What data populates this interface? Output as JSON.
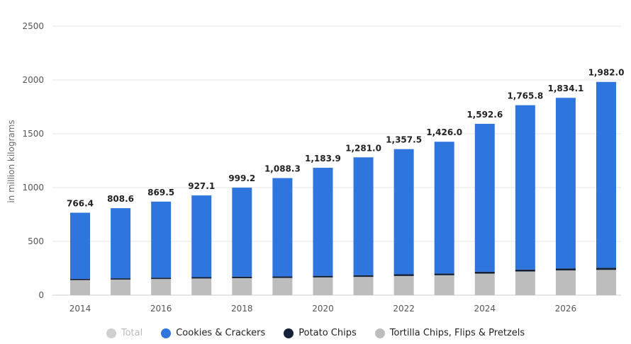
{
  "chart_data": {
    "type": "bar",
    "stacked": true,
    "ylabel": "in million kilograms",
    "ylim": [
      0,
      2500
    ],
    "yticks": [
      0,
      500,
      1000,
      1500,
      2000,
      2500
    ],
    "grid": true,
    "legend_placement": "bottom",
    "categories": [
      "2014",
      "2015",
      "2016",
      "2017",
      "2018",
      "2019",
      "2020",
      "2021",
      "2022",
      "2023",
      "2024",
      "2025",
      "2026",
      "2027"
    ],
    "xtick_labels": [
      "2014",
      "",
      "2016",
      "",
      "2018",
      "",
      "2020",
      "",
      "2022",
      "",
      "2024",
      "",
      "2026",
      ""
    ],
    "total_labels": [
      "766.4",
      "808.6",
      "869.5",
      "927.1",
      "999.2",
      "1,088.3",
      "1,183.9",
      "1,281.0",
      "1,357.5",
      "1,426.0",
      "1,592.6",
      "1,765.8",
      "1,834.1",
      "1,982.0"
    ],
    "series": [
      {
        "name": "Tortilla Chips, Flips & Pretzels",
        "color": "#bdbdbd",
        "values": [
          140,
          145,
          150,
          155,
          158,
          160,
          165,
          170,
          178,
          185,
          200,
          220,
          230,
          235
        ]
      },
      {
        "name": "Potato Chips",
        "color": "#152238",
        "values": [
          12,
          12,
          13,
          13,
          14,
          14,
          15,
          15,
          16,
          17,
          18,
          18,
          19,
          20
        ]
      },
      {
        "name": "Cookies & Crackers",
        "color": "#2f75de",
        "values": [
          614.4,
          651.6,
          706.5,
          759.1,
          827.2,
          914.3,
          1003.9,
          1096.0,
          1163.5,
          1224.0,
          1374.6,
          1527.8,
          1585.1,
          1727.0
        ]
      }
    ],
    "total": {
      "name": "Total",
      "values": [
        766.4,
        808.6,
        869.5,
        927.1,
        999.2,
        1088.3,
        1183.9,
        1281.0,
        1357.5,
        1426.0,
        1592.6,
        1765.8,
        1834.1,
        1982.0
      ]
    }
  },
  "legend": [
    {
      "label": "Total",
      "color": "#cfcfcf",
      "dim": true
    },
    {
      "label": "Cookies & Crackers",
      "color": "#2f75de",
      "dim": false
    },
    {
      "label": "Potato Chips",
      "color": "#152238",
      "dim": false
    },
    {
      "label": "Tortilla Chips, Flips & Pretzels",
      "color": "#bdbdbd",
      "dim": false
    }
  ]
}
